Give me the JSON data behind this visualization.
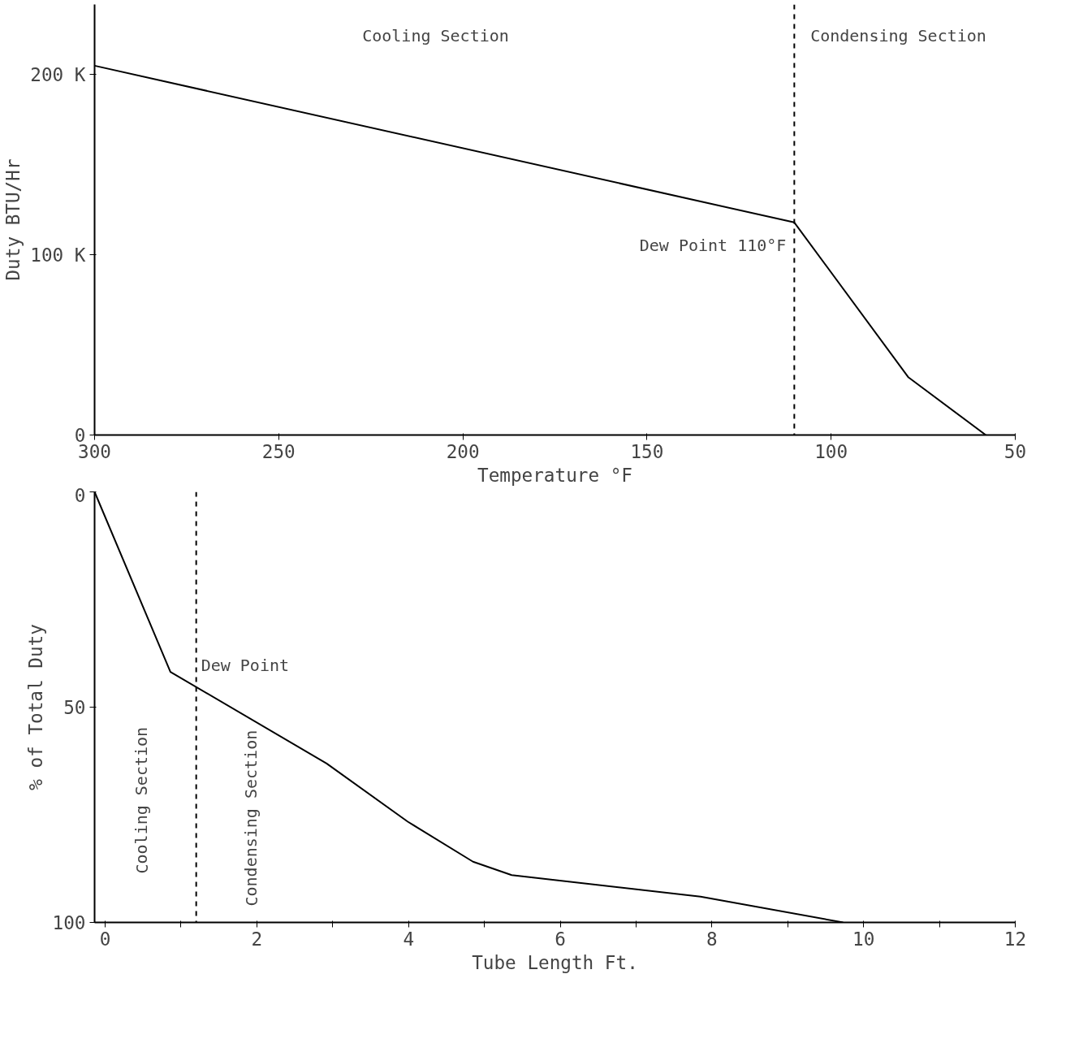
{
  "chart_data": [
    {
      "type": "line",
      "xlabel": "Temperature °F",
      "ylabel": "Duty BTU/Hr",
      "x": [
        300,
        110,
        79,
        58
      ],
      "series": [
        {
          "color": "#000000",
          "values": [
            205,
            118,
            32,
            0
          ]
        }
      ],
      "xlim": [
        300,
        50
      ],
      "ylim": [
        0,
        239
      ],
      "xticks": [
        300,
        250,
        200,
        150,
        100,
        50
      ],
      "yticks": [
        0,
        {
          "value": 100,
          "label": "100 K"
        },
        {
          "value": 200,
          "label": "200 K"
        }
      ],
      "ref_lines": [
        {
          "axis": "x",
          "value": 110,
          "color": "#000000",
          "line_style": "dashed"
        }
      ],
      "annotations": [
        "Cooling Section",
        "Condensing Section",
        {
          "text": "Dew Point 110°F",
          "x": 110,
          "y": 118
        }
      ],
      "grid": false,
      "marker": "none",
      "line_style": "solid"
    },
    {
      "type": "line",
      "xlabel": "Tube Length Ft.",
      "ylabel": "% of Total Duty",
      "x": [
        -0.14,
        0.86,
        2.92,
        3.99,
        4.85,
        5.36,
        7.85,
        9.73
      ],
      "series": [
        {
          "color": "#000000",
          "values": [
            0,
            41.8,
            63.1,
            76.6,
            85.9,
            89,
            94,
            100
          ]
        }
      ],
      "xlim": [
        -0.14,
        12
      ],
      "ylim": [
        100,
        0
      ],
      "xticks": [
        0,
        {
          "value": 1,
          "label": null
        },
        2,
        {
          "value": 3,
          "label": null
        },
        4,
        {
          "value": 5,
          "label": null
        },
        6,
        {
          "value": 7,
          "label": null
        },
        8,
        {
          "value": 9,
          "label": null
        },
        10,
        {
          "value": 11,
          "label": null
        },
        12
      ],
      "yticks": [
        0,
        50,
        100
      ],
      "ref_lines": [
        {
          "axis": "x",
          "value": 1.2,
          "color": "#000000",
          "line_style": "dashed"
        }
      ],
      "annotations": [
        "Cooling Section",
        "Condensing Section",
        {
          "text": "Dew Point",
          "x": 1.2,
          "y": 44
        }
      ],
      "grid": false,
      "marker": "none",
      "line_style": "solid"
    }
  ]
}
